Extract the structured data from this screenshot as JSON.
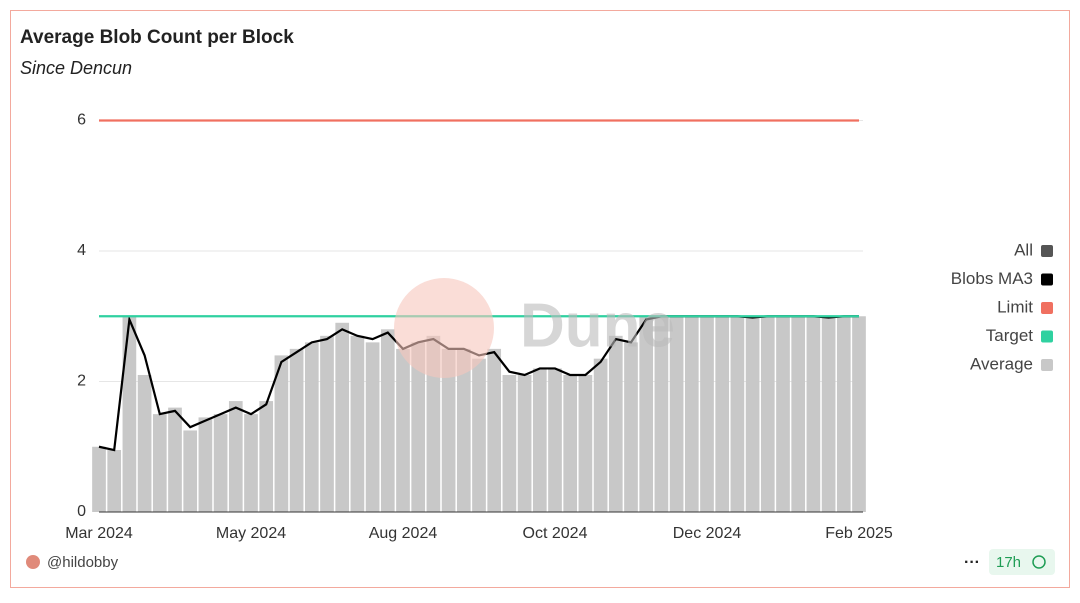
{
  "chart_data": {
    "type": "bar_line",
    "title": "Average Blob Count per Block",
    "subtitle": "Since Dencun",
    "watermark": "Dune",
    "categories": [
      "Mar 2024",
      null,
      null,
      null,
      null,
      null,
      null,
      null,
      null,
      null,
      "May 2024",
      null,
      null,
      null,
      null,
      null,
      null,
      null,
      null,
      null,
      "Aug 2024",
      null,
      null,
      null,
      null,
      null,
      null,
      null,
      null,
      null,
      "Oct 2024",
      null,
      null,
      null,
      null,
      null,
      null,
      null,
      null,
      null,
      "Dec 2024",
      null,
      null,
      null,
      null,
      null,
      null,
      null,
      null,
      null,
      "Feb 2025"
    ],
    "ylim": [
      0,
      6.1
    ],
    "yticks": [
      0,
      2,
      4,
      6
    ],
    "grid": true,
    "legend": "right",
    "series": [
      {
        "name": "All",
        "color": "#555555"
      },
      {
        "name": "Blobs MA3",
        "color": "#000000",
        "kind": "line",
        "values": [
          1.0,
          0.95,
          2.95,
          2.4,
          1.5,
          1.55,
          1.3,
          1.4,
          1.5,
          1.6,
          1.5,
          1.65,
          2.3,
          2.45,
          2.6,
          2.65,
          2.8,
          2.7,
          2.65,
          2.75,
          2.5,
          2.6,
          2.65,
          2.5,
          2.5,
          2.4,
          2.45,
          2.15,
          2.1,
          2.2,
          2.2,
          2.1,
          2.1,
          2.3,
          2.65,
          2.6,
          2.95,
          3.0,
          3.0,
          3.0,
          3.0,
          3.0,
          3.0,
          2.98,
          3.0,
          3.0,
          3.0,
          3.0,
          2.98,
          3.0,
          3.0
        ]
      },
      {
        "name": "Limit",
        "color": "#f07060",
        "kind": "line",
        "values": [
          6,
          6,
          6,
          6,
          6,
          6,
          6,
          6,
          6,
          6,
          6,
          6,
          6,
          6,
          6,
          6,
          6,
          6,
          6,
          6,
          6,
          6,
          6,
          6,
          6,
          6,
          6,
          6,
          6,
          6,
          6,
          6,
          6,
          6,
          6,
          6,
          6,
          6,
          6,
          6,
          6,
          6,
          6,
          6,
          6,
          6,
          6,
          6,
          6,
          6,
          6
        ]
      },
      {
        "name": "Target",
        "color": "#2fd1a0",
        "kind": "line",
        "values": [
          3,
          3,
          3,
          3,
          3,
          3,
          3,
          3,
          3,
          3,
          3,
          3,
          3,
          3,
          3,
          3,
          3,
          3,
          3,
          3,
          3,
          3,
          3,
          3,
          3,
          3,
          3,
          3,
          3,
          3,
          3,
          3,
          3,
          3,
          3,
          3,
          3,
          3,
          3,
          3,
          3,
          3,
          3,
          3,
          3,
          3,
          3,
          3,
          3,
          3,
          3
        ]
      },
      {
        "name": "Average",
        "color": "#c8c8c8",
        "kind": "bar",
        "values": [
          1.0,
          0.95,
          3.0,
          2.1,
          1.5,
          1.6,
          1.25,
          1.45,
          1.5,
          1.7,
          1.5,
          1.7,
          2.4,
          2.5,
          2.6,
          2.7,
          2.9,
          2.7,
          2.6,
          2.8,
          2.5,
          2.6,
          2.7,
          2.5,
          2.5,
          2.35,
          2.5,
          2.1,
          2.1,
          2.2,
          2.2,
          2.1,
          2.1,
          2.35,
          2.7,
          2.6,
          3.0,
          3.0,
          3.0,
          3.0,
          3.0,
          3.0,
          3.0,
          2.97,
          3.0,
          3.0,
          3.0,
          3.0,
          2.98,
          3.0,
          3.0
        ]
      }
    ]
  },
  "footer": {
    "author": "@hildobby",
    "age": "17h"
  }
}
